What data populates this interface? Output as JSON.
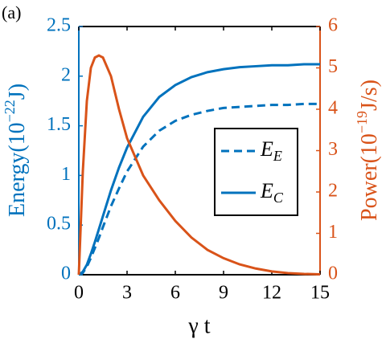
{
  "chart_data": {
    "type": "line",
    "panel_label": "(a)",
    "xlabel": "γ t",
    "ylabel": {
      "text": "Energy(10",
      "sup": "−22",
      "unit": "J)"
    },
    "y2label": {
      "text": "Power(10",
      "sup": "−19",
      "unit": "J/s)"
    },
    "x": [
      0,
      0.25,
      0.5,
      0.75,
      1,
      1.25,
      1.5,
      2,
      2.5,
      3,
      4,
      5,
      6,
      7,
      8,
      9,
      10,
      11,
      12,
      13,
      14,
      15
    ],
    "series": [
      {
        "name": "E",
        "name_sub": "E",
        "color": "#0072bd",
        "dash": true,
        "values": [
          0,
          0.02,
          0.08,
          0.17,
          0.27,
          0.37,
          0.48,
          0.69,
          0.87,
          1.04,
          1.29,
          1.45,
          1.55,
          1.61,
          1.65,
          1.68,
          1.69,
          1.7,
          1.71,
          1.71,
          1.72,
          1.72
        ]
      },
      {
        "name": "E",
        "name_sub": "C",
        "color": "#0072bd",
        "dash": false,
        "values": [
          0,
          0.03,
          0.1,
          0.21,
          0.33,
          0.46,
          0.59,
          0.85,
          1.08,
          1.28,
          1.59,
          1.79,
          1.91,
          1.99,
          2.04,
          2.07,
          2.09,
          2.1,
          2.11,
          2.11,
          2.12,
          2.12
        ]
      },
      {
        "color": "#d95319",
        "dash": false,
        "axis": "y2",
        "values": [
          0,
          2.5,
          4.2,
          5.0,
          5.25,
          5.3,
          5.25,
          4.8,
          4.0,
          3.3,
          2.4,
          1.8,
          1.3,
          0.9,
          0.6,
          0.4,
          0.25,
          0.15,
          0.08,
          0.04,
          0.02,
          0.01
        ]
      }
    ],
    "xlim": [
      0,
      15
    ],
    "xticks": [
      0,
      3,
      6,
      9,
      12,
      15
    ],
    "ylim": [
      0,
      2.5
    ],
    "yticks": [
      0,
      0.5,
      1,
      1.5,
      2,
      2.5
    ],
    "y2lim": [
      0,
      6
    ],
    "y2ticks": [
      0,
      1,
      2,
      3,
      4,
      5,
      6
    ],
    "ycolor": "#0072bd",
    "y2color": "#d95319"
  }
}
